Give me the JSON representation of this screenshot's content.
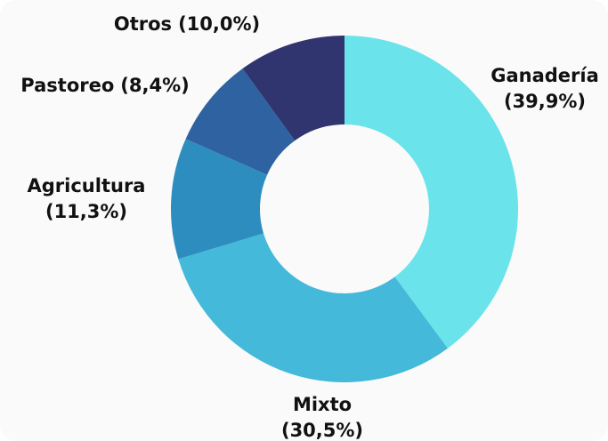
{
  "chart_data": {
    "type": "donut",
    "categories": [
      "Ganadería",
      "Mixto",
      "Agricultura",
      "Pastoreo",
      "Otros"
    ],
    "values": [
      39.9,
      30.5,
      11.3,
      8.4,
      10.0
    ],
    "value_labels": [
      "(39,9%)",
      "(30,5%)",
      "(11,3%)",
      "(8,4%)",
      "(10,0%)"
    ],
    "colors": [
      "#6ae4ea",
      "#44b9d9",
      "#2e8dbf",
      "#2e62a0",
      "#30356f"
    ]
  }
}
